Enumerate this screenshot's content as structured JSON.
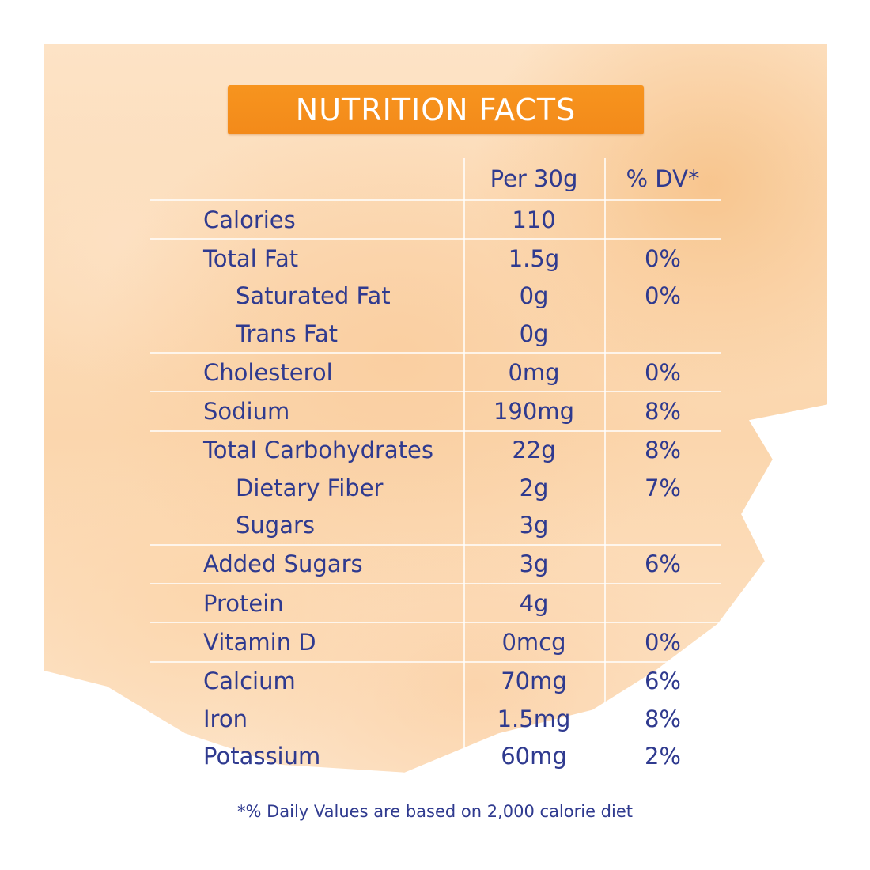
{
  "title": "NUTRITION FACTS",
  "headers": {
    "amount": "Per 30g",
    "dv": "% DV*"
  },
  "rows": [
    {
      "label": "Calories",
      "amount": "110",
      "dv": "",
      "indent": false,
      "sep": true
    },
    {
      "label": "Total Fat",
      "amount": "1.5g",
      "dv": "0%",
      "indent": false,
      "sep": true
    },
    {
      "label": "Saturated Fat",
      "amount": "0g",
      "dv": "0%",
      "indent": true,
      "sep": false
    },
    {
      "label": "Trans Fat",
      "amount": "0g",
      "dv": "",
      "indent": true,
      "sep": false
    },
    {
      "label": "Cholesterol",
      "amount": "0mg",
      "dv": "0%",
      "indent": false,
      "sep": true
    },
    {
      "label": "Sodium",
      "amount": "190mg",
      "dv": "8%",
      "indent": false,
      "sep": true
    },
    {
      "label": "Total Carbohydrates",
      "amount": "22g",
      "dv": "8%",
      "indent": false,
      "sep": true
    },
    {
      "label": "Dietary Fiber",
      "amount": "2g",
      "dv": "7%",
      "indent": true,
      "sep": false
    },
    {
      "label": "Sugars",
      "amount": "3g",
      "dv": "",
      "indent": true,
      "sep": false
    },
    {
      "label": "Added Sugars",
      "amount": "3g",
      "dv": "6%",
      "indent": false,
      "sep": true
    },
    {
      "label": "Protein",
      "amount": "4g",
      "dv": "",
      "indent": false,
      "sep": true
    },
    {
      "label": "Vitamin D",
      "amount": "0mcg",
      "dv": "0%",
      "indent": false,
      "sep": true
    },
    {
      "label": "Calcium",
      "amount": "70mg",
      "dv": "6%",
      "indent": false,
      "sep": true
    },
    {
      "label": "Iron",
      "amount": "1.5mg",
      "dv": "8%",
      "indent": false,
      "sep": false
    },
    {
      "label": "Potassium",
      "amount": "60mg",
      "dv": "2%",
      "indent": false,
      "sep": false
    }
  ],
  "footnote": "*% Daily Values are based on 2,000 calorie diet",
  "colors": {
    "accent": "#f7941e",
    "text": "#2f3a8f",
    "wash": "#fbd6ad"
  }
}
